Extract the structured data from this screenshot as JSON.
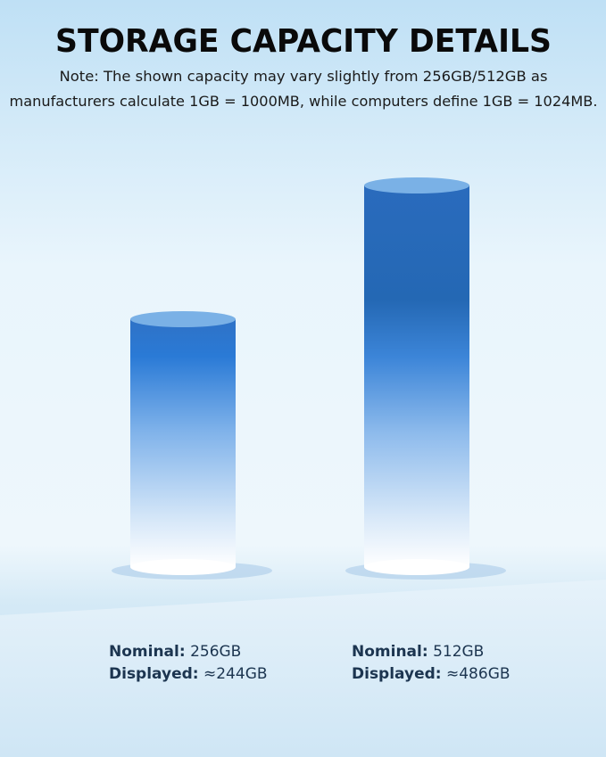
{
  "title": "STORAGE CAPACITY DETAILS",
  "note_lines": [
    "Note: The shown capacity may vary slightly from 256GB/512GB as",
    "manufacturers calculate 1GB = 1000MB, while computers define 1GB = 1024MB."
  ],
  "items": [
    {
      "nominal_label": "Nominal:",
      "nominal": "256GB",
      "displayed_label": "Displayed:",
      "displayed": "≈244GB"
    },
    {
      "nominal_label": "Nominal:",
      "nominal": "512GB",
      "displayed_label": "Displayed:",
      "displayed": "≈486GB"
    }
  ]
}
